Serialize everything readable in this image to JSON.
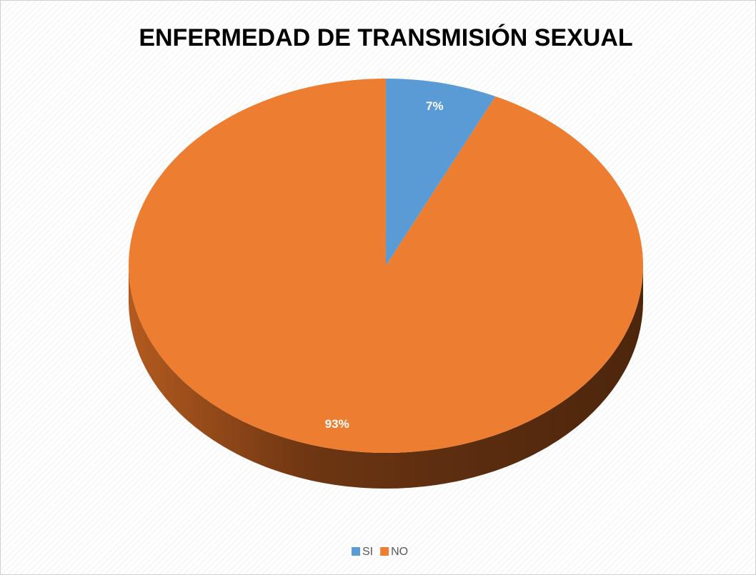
{
  "chart_data": {
    "type": "pie",
    "title": "ENFERMEDAD DE TRANSMISIÓN SEXUAL",
    "categories": [
      "SI",
      "NO"
    ],
    "values": [
      7,
      93
    ],
    "value_labels": [
      "7%",
      "93%"
    ],
    "colors": [
      "#5b9bd5",
      "#ed7d31"
    ],
    "legend": "bottom"
  }
}
